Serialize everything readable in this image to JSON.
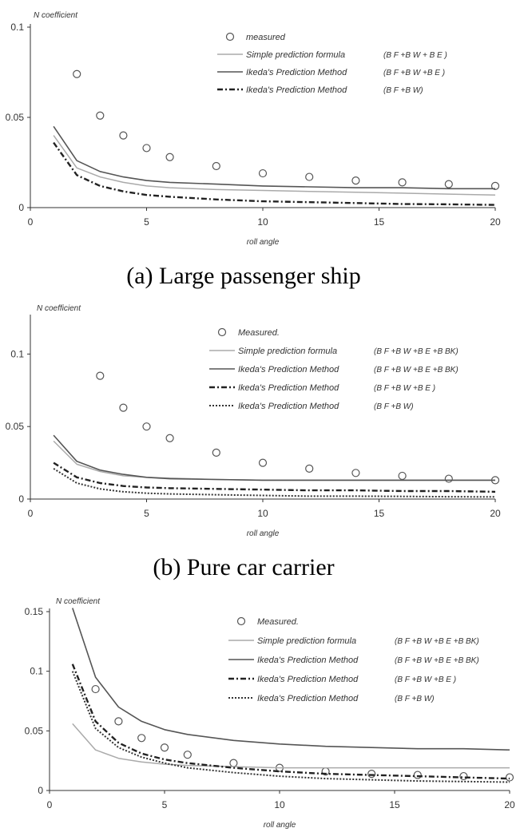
{
  "captions": [
    "(a) Large passenger ship",
    "(b) Pure car carrier",
    ""
  ],
  "chart_data": [
    {
      "type": "line",
      "ylabel": "N coefficient",
      "xlabel": "roll angle",
      "xlim": [
        0,
        20
      ],
      "ylim": [
        0,
        0.1
      ],
      "xticks": [
        "0",
        "5",
        "10",
        "15",
        "20"
      ],
      "yticks": [
        "0",
        "0.05",
        "0.1"
      ],
      "series": [
        {
          "name": "measured",
          "style": "marker",
          "color": "#555555",
          "x": [
            2,
            3,
            4,
            5,
            6,
            8,
            10,
            12,
            14,
            16,
            18,
            20
          ],
          "y": [
            0.074,
            0.051,
            0.04,
            0.033,
            0.028,
            0.023,
            0.019,
            0.017,
            0.015,
            0.014,
            0.013,
            0.012
          ]
        },
        {
          "name": "Simple prediction formula",
          "formula": "(B F +B W + B E )",
          "style": "solid-light",
          "color": "#aaaaaa",
          "x": [
            1,
            2,
            3,
            4,
            5,
            6,
            8,
            10,
            12,
            14,
            16,
            18,
            20
          ],
          "y": [
            0.04,
            0.022,
            0.017,
            0.014,
            0.012,
            0.011,
            0.01,
            0.0095,
            0.009,
            0.0085,
            0.008,
            0.0075,
            0.007
          ]
        },
        {
          "name": "Ikeda's Prediction Method",
          "formula": "(B F +B W +B E )",
          "style": "solid",
          "color": "#555555",
          "x": [
            1,
            2,
            3,
            4,
            5,
            6,
            8,
            10,
            12,
            14,
            16,
            18,
            20
          ],
          "y": [
            0.045,
            0.026,
            0.02,
            0.017,
            0.015,
            0.014,
            0.013,
            0.012,
            0.0115,
            0.011,
            0.011,
            0.0105,
            0.0105
          ]
        },
        {
          "name": "Ikeda's Prediction Method",
          "formula": "(B F +B W)",
          "style": "dashdot",
          "color": "#222222",
          "x": [
            1,
            2,
            3,
            4,
            5,
            6,
            8,
            10,
            12,
            14,
            16,
            18,
            20
          ],
          "y": [
            0.036,
            0.018,
            0.012,
            0.009,
            0.007,
            0.006,
            0.0045,
            0.0035,
            0.003,
            0.0025,
            0.002,
            0.0018,
            0.0015
          ]
        }
      ]
    },
    {
      "type": "line",
      "ylabel": "N coefficient",
      "xlabel": "roll angle",
      "xlim": [
        0,
        20
      ],
      "ylim": [
        0,
        0.125
      ],
      "xticks": [
        "0",
        "5",
        "10",
        "15",
        "20"
      ],
      "yticks": [
        "0",
        "0.05",
        "0.1"
      ],
      "series": [
        {
          "name": "Measured.",
          "style": "marker",
          "color": "#555555",
          "x": [
            3,
            4,
            5,
            6,
            8,
            10,
            12,
            14,
            16,
            18,
            20
          ],
          "y": [
            0.085,
            0.063,
            0.05,
            0.042,
            0.032,
            0.025,
            0.021,
            0.018,
            0.016,
            0.014,
            0.013
          ]
        },
        {
          "name": "Simple prediction formula",
          "formula": "(B F +B W +B E +B BK)",
          "style": "solid-light",
          "color": "#aaaaaa",
          "x": [
            1,
            2,
            3,
            4,
            5,
            6,
            8,
            10,
            12,
            14,
            16,
            18,
            20
          ],
          "y": [
            0.04,
            0.024,
            0.019,
            0.016,
            0.015,
            0.0145,
            0.0135,
            0.013,
            0.013,
            0.013,
            0.013,
            0.013,
            0.013
          ]
        },
        {
          "name": "Ikeda's Prediction Method",
          "formula": "(B F +B W +B E +B BK)",
          "style": "solid",
          "color": "#555555",
          "x": [
            1,
            2,
            3,
            4,
            5,
            6,
            8,
            10,
            12,
            14,
            16,
            18,
            20
          ],
          "y": [
            0.044,
            0.026,
            0.02,
            0.017,
            0.015,
            0.014,
            0.0135,
            0.013,
            0.013,
            0.013,
            0.013,
            0.013,
            0.013
          ]
        },
        {
          "name": "Ikeda's Prediction Method",
          "formula": "(B F +B W +B E )",
          "style": "dashdot",
          "color": "#222222",
          "x": [
            1,
            2,
            3,
            4,
            5,
            6,
            8,
            10,
            12,
            14,
            16,
            18,
            20
          ],
          "y": [
            0.025,
            0.015,
            0.011,
            0.009,
            0.008,
            0.0075,
            0.007,
            0.0065,
            0.006,
            0.006,
            0.0055,
            0.0055,
            0.005
          ]
        },
        {
          "name": "Ikeda's Prediction Method",
          "formula": "(B F +B W)",
          "style": "dotted",
          "color": "#333333",
          "x": [
            1,
            2,
            3,
            4,
            5,
            6,
            8,
            10,
            12,
            14,
            16,
            18,
            20
          ],
          "y": [
            0.021,
            0.011,
            0.007,
            0.005,
            0.004,
            0.0035,
            0.003,
            0.0025,
            0.002,
            0.002,
            0.0018,
            0.0016,
            0.0015
          ]
        }
      ]
    },
    {
      "type": "line",
      "ylabel": "N coefficient",
      "xlabel": "roll angle",
      "xlim": [
        0,
        20
      ],
      "ylim": [
        0,
        0.15
      ],
      "xticks": [
        "0",
        "5",
        "10",
        "15",
        "20"
      ],
      "yticks": [
        "0",
        "0.05",
        "0.1",
        "0.15"
      ],
      "series": [
        {
          "name": "Measured.",
          "style": "marker",
          "color": "#555555",
          "x": [
            2,
            3,
            4,
            5,
            6,
            8,
            10,
            12,
            14,
            16,
            18,
            20
          ],
          "y": [
            0.085,
            0.058,
            0.044,
            0.036,
            0.03,
            0.023,
            0.019,
            0.016,
            0.014,
            0.013,
            0.012,
            0.011
          ]
        },
        {
          "name": "Simple prediction formula",
          "formula": "(B F +B W +B E +B BK)",
          "style": "solid-light",
          "color": "#aaaaaa",
          "x": [
            1,
            2,
            3,
            4,
            5,
            6,
            8,
            10,
            12,
            14,
            16,
            18,
            20
          ],
          "y": [
            0.056,
            0.034,
            0.027,
            0.024,
            0.022,
            0.021,
            0.02,
            0.019,
            0.019,
            0.019,
            0.019,
            0.019,
            0.019
          ]
        },
        {
          "name": "Ikeda's Prediction Method",
          "formula": "(B F +B W +B E +B BK)",
          "style": "solid",
          "color": "#555555",
          "x": [
            1,
            2,
            3,
            4,
            5,
            6,
            8,
            10,
            12,
            14,
            16,
            18,
            20
          ],
          "y": [
            0.16,
            0.095,
            0.07,
            0.058,
            0.051,
            0.047,
            0.042,
            0.039,
            0.037,
            0.036,
            0.035,
            0.035,
            0.034
          ]
        },
        {
          "name": "Ikeda's Prediction Method",
          "formula": "(B F +B W +B E )",
          "style": "dashdot",
          "color": "#222222",
          "x": [
            1,
            2,
            3,
            4,
            5,
            6,
            8,
            10,
            12,
            14,
            16,
            18,
            20
          ],
          "y": [
            0.106,
            0.058,
            0.04,
            0.031,
            0.026,
            0.023,
            0.019,
            0.016,
            0.014,
            0.013,
            0.012,
            0.011,
            0.01
          ]
        },
        {
          "name": "Ikeda's Prediction Method",
          "formula": "(B F +B W)",
          "style": "dotted",
          "color": "#333333",
          "x": [
            1,
            2,
            3,
            4,
            5,
            6,
            8,
            10,
            12,
            14,
            16,
            18,
            20
          ],
          "y": [
            0.1,
            0.052,
            0.036,
            0.028,
            0.023,
            0.019,
            0.015,
            0.012,
            0.01,
            0.009,
            0.008,
            0.0075,
            0.007
          ]
        }
      ]
    }
  ]
}
